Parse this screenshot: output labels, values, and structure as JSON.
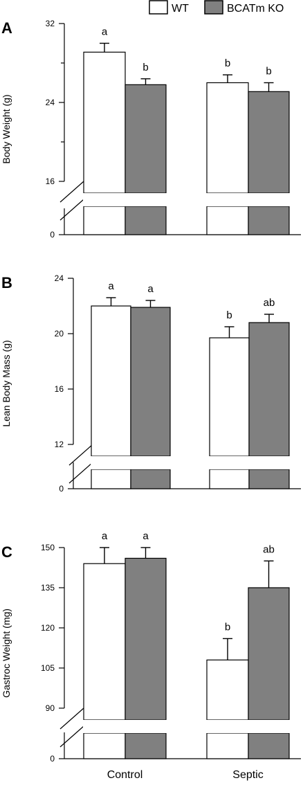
{
  "legend": {
    "placement": "top-right",
    "items": [
      {
        "label": "WT",
        "color": "#ffffff"
      },
      {
        "label": "BCATm KO",
        "color": "#808080"
      }
    ]
  },
  "categories": [
    "Control",
    "Septic"
  ],
  "axis_break": true,
  "chart_data": [
    {
      "type": "bar",
      "panel_label": "A",
      "ylabel": "Body Weight  (g)",
      "categories": [
        "Control",
        "Septic"
      ],
      "ylim": [
        16,
        32
      ],
      "yticks": [
        16,
        24,
        32
      ],
      "ytick_labels": [
        "16",
        "24",
        "32"
      ],
      "ytick_minor": [
        20,
        28
      ],
      "baseline_label": "0",
      "series": [
        {
          "name": "WT",
          "color": "#ffffff",
          "values": [
            29.1,
            26.0
          ],
          "errors": [
            0.9,
            0.8
          ],
          "letters": [
            "a",
            "b"
          ]
        },
        {
          "name": "BCATm KO",
          "color": "#808080",
          "values": [
            25.8,
            25.1
          ],
          "errors": [
            0.6,
            0.9
          ],
          "letters": [
            "b",
            "b"
          ]
        }
      ]
    },
    {
      "type": "bar",
      "panel_label": "B",
      "ylabel": "Lean Body Mass (g)",
      "categories": [
        "Control",
        "Septic"
      ],
      "ylim": [
        12,
        24
      ],
      "yticks": [
        12,
        16,
        20,
        24
      ],
      "ytick_labels": [
        "12",
        "16",
        "20",
        "24"
      ],
      "ytick_minor": [],
      "baseline_label": "0",
      "series": [
        {
          "name": "WT",
          "color": "#ffffff",
          "values": [
            22.0,
            19.7
          ],
          "errors": [
            0.6,
            0.8
          ],
          "letters": [
            "a",
            "b"
          ]
        },
        {
          "name": "BCATm KO",
          "color": "#808080",
          "values": [
            21.9,
            20.8
          ],
          "errors": [
            0.5,
            0.6
          ],
          "letters": [
            "a",
            "ab"
          ]
        }
      ]
    },
    {
      "type": "bar",
      "panel_label": "C",
      "ylabel": "Gastroc Weight (mg)",
      "categories": [
        "Control",
        "Septic"
      ],
      "ylim": [
        90,
        150
      ],
      "yticks": [
        90,
        105,
        120,
        135,
        150
      ],
      "ytick_labels": [
        "90",
        "105",
        "120",
        "135",
        "150"
      ],
      "ytick_minor": [],
      "baseline_label": "0",
      "series": [
        {
          "name": "WT",
          "color": "#ffffff",
          "values": [
            144.0,
            108.0
          ],
          "errors": [
            6.0,
            8.0
          ],
          "letters": [
            "a",
            "b"
          ]
        },
        {
          "name": "BCATm KO",
          "color": "#808080",
          "values": [
            146.0,
            135.0
          ],
          "errors": [
            4.0,
            10.0
          ],
          "letters": [
            "a",
            "ab"
          ]
        }
      ]
    }
  ]
}
